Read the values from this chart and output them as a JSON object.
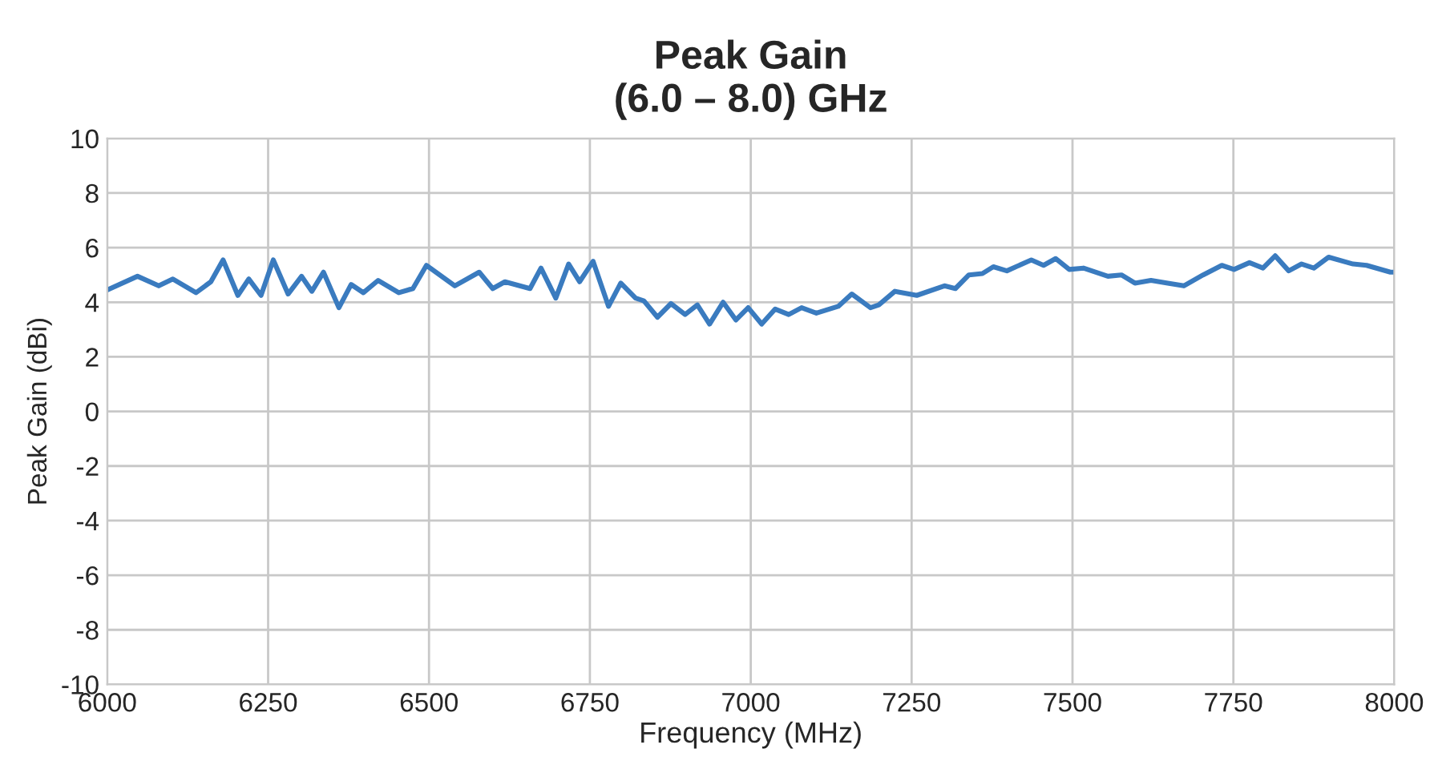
{
  "chart_data": {
    "type": "line",
    "title": "Peak Gain\n(6.0 – 8.0) GHz",
    "xlabel": "Frequency (MHz)",
    "ylabel": "Peak Gain (dBi)",
    "x": [
      6000,
      6047,
      6080,
      6102,
      6138,
      6161,
      6180,
      6203,
      6220,
      6239,
      6258,
      6281,
      6302,
      6318,
      6336,
      6360,
      6379,
      6398,
      6421,
      6453,
      6475,
      6496,
      6540,
      6578,
      6599,
      6618,
      6657,
      6674,
      6697,
      6717,
      6734,
      6755,
      6779,
      6798,
      6821,
      6834,
      6855,
      6876,
      6898,
      6917,
      6936,
      6957,
      6977,
      6996,
      7017,
      7038,
      7059,
      7079,
      7102,
      7136,
      7157,
      7186,
      7199,
      7224,
      7258,
      7301,
      7318,
      7339,
      7360,
      7377,
      7398,
      7436,
      7455,
      7474,
      7495,
      7517,
      7555,
      7576,
      7597,
      7622,
      7648,
      7673,
      7703,
      7732,
      7751,
      7775,
      7796,
      7815,
      7836,
      7856,
      7875,
      7898,
      7936,
      7957,
      7994,
      8000
    ],
    "series": [
      {
        "color": "#3a7bbf",
        "values": [
          4.45,
          4.95,
          4.6,
          4.85,
          4.35,
          4.75,
          5.55,
          4.25,
          4.85,
          4.25,
          5.55,
          4.3,
          4.95,
          4.4,
          5.1,
          3.8,
          4.65,
          4.35,
          4.8,
          4.35,
          4.5,
          5.35,
          4.6,
          5.1,
          4.5,
          4.75,
          4.5,
          5.25,
          4.15,
          5.4,
          4.75,
          5.5,
          3.85,
          4.7,
          4.15,
          4.05,
          3.45,
          3.95,
          3.55,
          3.9,
          3.2,
          4.0,
          3.35,
          3.8,
          3.2,
          3.75,
          3.55,
          3.8,
          3.6,
          3.85,
          4.3,
          3.8,
          3.9,
          4.4,
          4.25,
          4.6,
          4.5,
          5.0,
          5.05,
          5.3,
          5.15,
          5.55,
          5.35,
          5.6,
          5.2,
          5.25,
          4.95,
          5.0,
          4.7,
          4.8,
          4.7,
          4.6,
          5.0,
          5.35,
          5.2,
          5.45,
          5.25,
          5.7,
          5.15,
          5.4,
          5.25,
          5.65,
          5.4,
          5.35,
          5.1,
          5.1
        ]
      }
    ],
    "xlim": [
      6000,
      8000
    ],
    "xticks": [
      6000,
      6250,
      6500,
      6750,
      7000,
      7250,
      7500,
      7750,
      8000
    ],
    "ylim": [
      -10,
      10
    ],
    "yticks": [
      -10,
      -8,
      -6,
      -4,
      -2,
      0,
      2,
      4,
      6,
      8,
      10
    ],
    "grid": true,
    "legend": false,
    "marker": "none",
    "line_style": "solid"
  }
}
